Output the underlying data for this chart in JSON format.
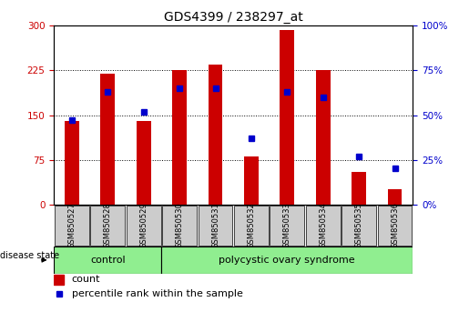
{
  "title": "GDS4399 / 238297_at",
  "samples": [
    "GSM850527",
    "GSM850528",
    "GSM850529",
    "GSM850530",
    "GSM850531",
    "GSM850532",
    "GSM850533",
    "GSM850534",
    "GSM850535",
    "GSM850536"
  ],
  "counts": [
    140,
    220,
    140,
    225,
    235,
    80,
    293,
    225,
    55,
    25
  ],
  "percentiles": [
    47,
    63,
    52,
    65,
    65,
    37,
    63,
    60,
    27,
    20
  ],
  "ylim_left": [
    0,
    300
  ],
  "ylim_right": [
    0,
    100
  ],
  "yticks_left": [
    0,
    75,
    150,
    225,
    300
  ],
  "yticks_right": [
    0,
    25,
    50,
    75,
    100
  ],
  "bar_color": "#cc0000",
  "marker_color": "#0000cc",
  "bar_width": 0.4,
  "control_label": "control",
  "disease_label": "polycystic ovary syndrome",
  "control_color": "#90ee90",
  "disease_color": "#90ee90",
  "legend_count_label": "count",
  "legend_pct_label": "percentile rank within the sample",
  "disease_state_label": "disease state",
  "left_tick_color": "#cc0000",
  "right_tick_color": "#0000cc",
  "tick_bg_color": "#cccccc",
  "title_fontsize": 10,
  "tick_fontsize": 7.5,
  "label_fontsize": 7.5
}
